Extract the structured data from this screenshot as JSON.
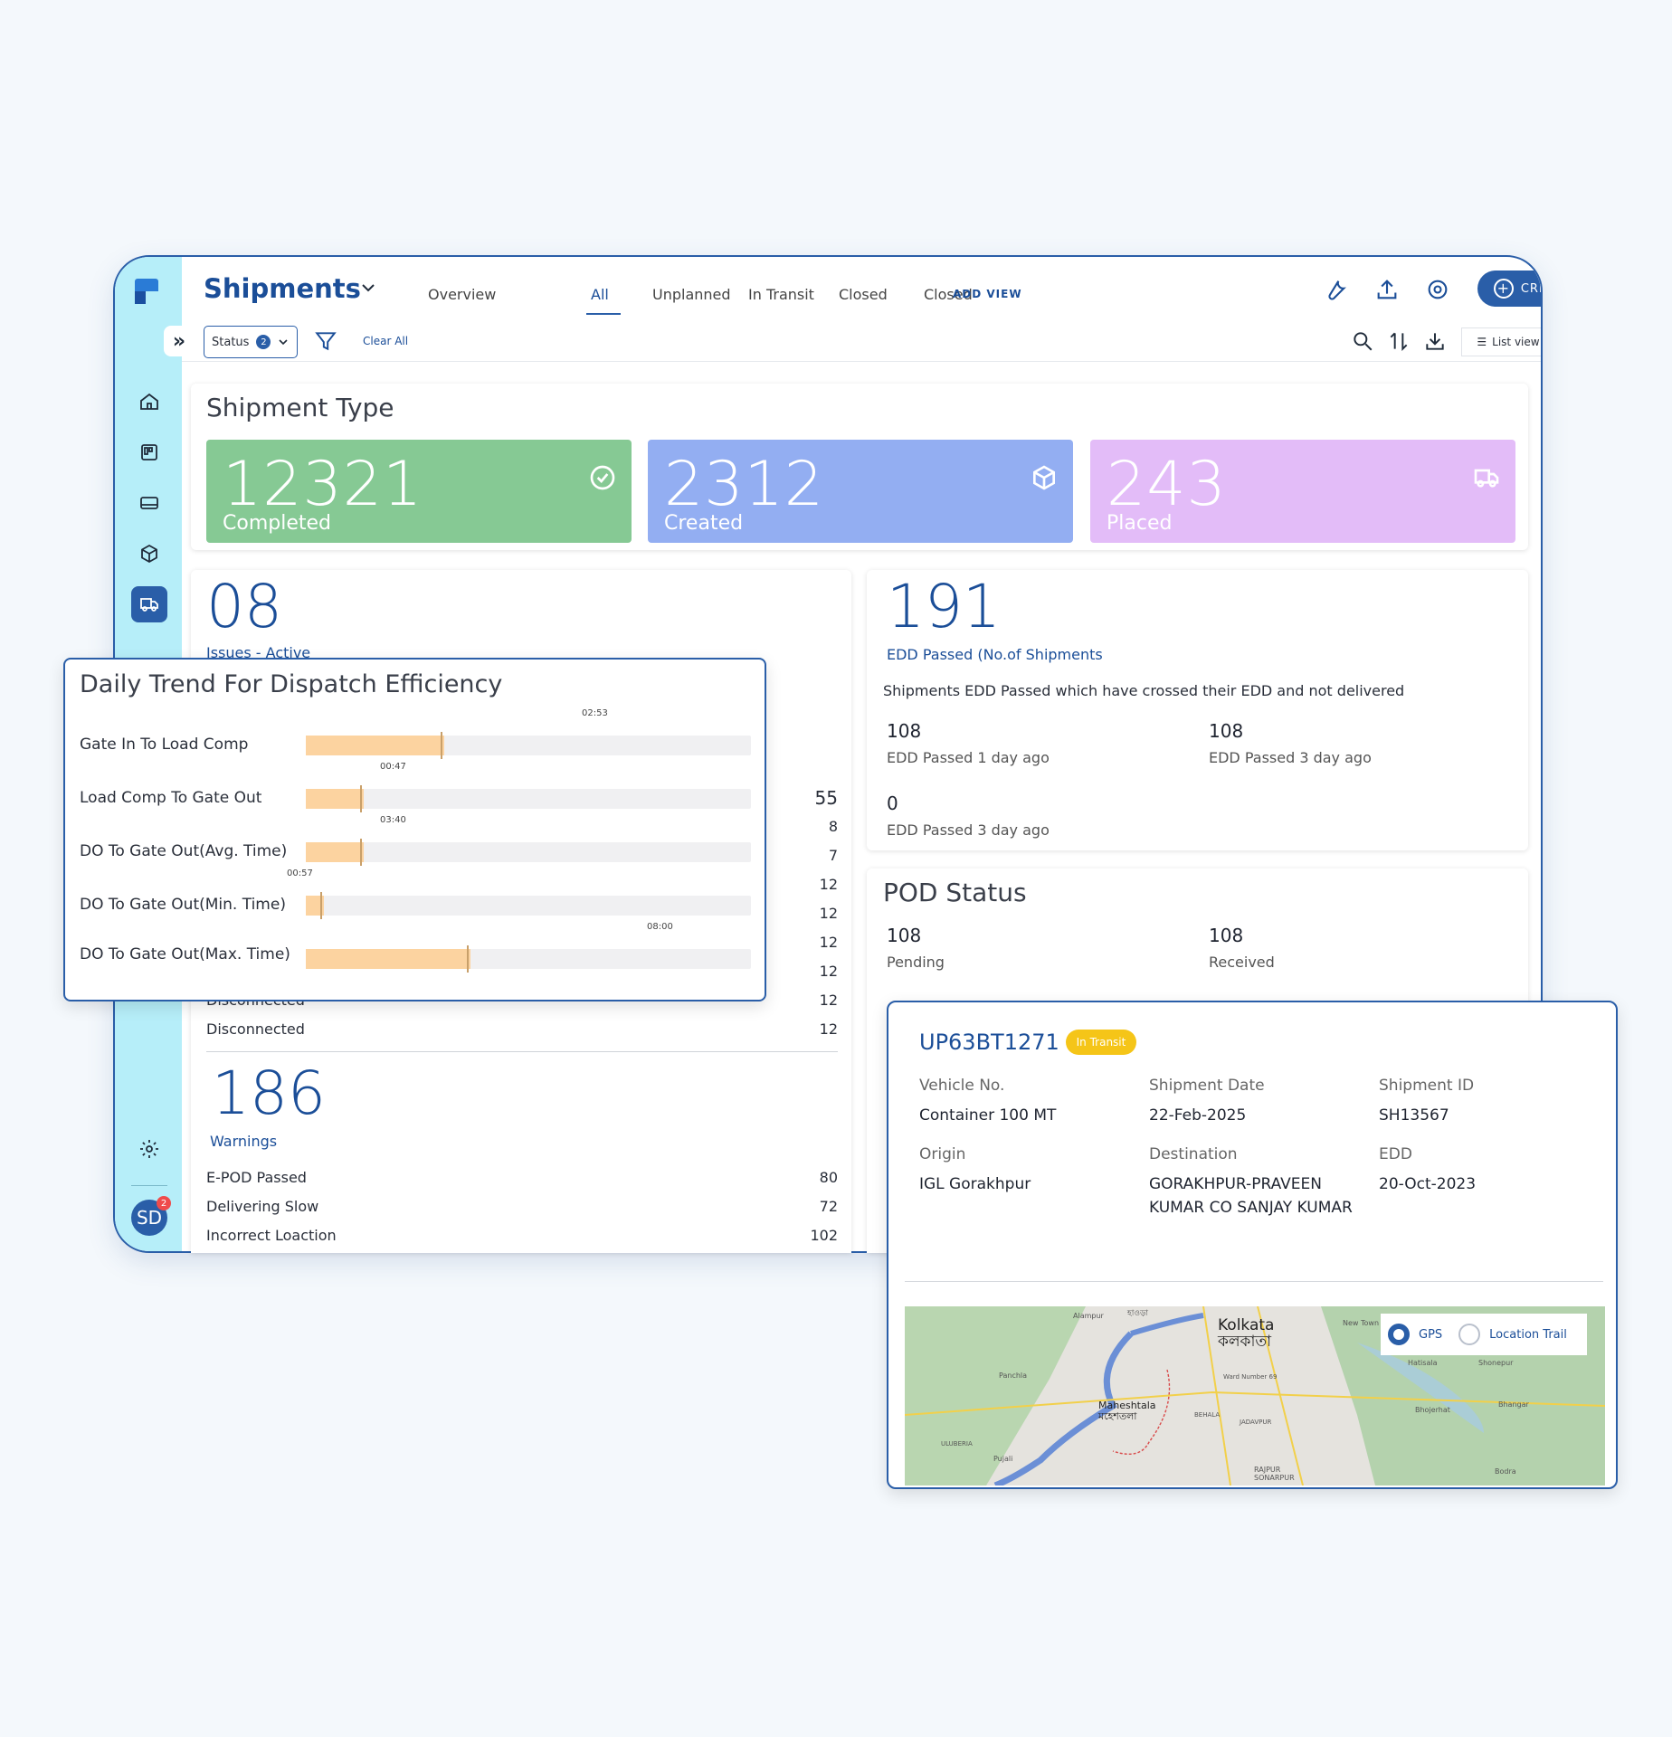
{
  "header": {
    "title": "Shipments",
    "tabs": [
      "Overview",
      "All",
      "Unplanned",
      "In Transit",
      "Closed",
      "Closed"
    ],
    "active_tab": "All",
    "add_view": "ADD VIEW",
    "create_label": "CREATE"
  },
  "filters": {
    "status_label": "Status",
    "status_count": "2",
    "clear_all": "Clear All",
    "view_label": "List view"
  },
  "shipment_type": {
    "title": "Shipment Type",
    "tiles": [
      {
        "value": "12321",
        "label": "Completed",
        "color": "#86c994",
        "icon": "check-circle-icon"
      },
      {
        "value": "2312",
        "label": "Created",
        "color": "#93aef2",
        "icon": "box-icon"
      },
      {
        "value": "243",
        "label": "Placed",
        "color": "#e3bcf8",
        "icon": "truck-icon"
      }
    ]
  },
  "issues": {
    "value": "08",
    "label": "Issues - Active",
    "right_values": [
      "55",
      "8",
      "7",
      "12",
      "12",
      "12",
      "12"
    ],
    "rows": [
      {
        "label": "Disconnected",
        "value": "12"
      },
      {
        "label": "Disconnected",
        "value": "12"
      }
    ]
  },
  "warnings": {
    "value": "186",
    "label": "Warnings",
    "rows": [
      {
        "label": "E-POD Passed",
        "value": "80"
      },
      {
        "label": "Delivering Slow",
        "value": "72"
      },
      {
        "label": "Incorrect Loaction",
        "value": "102"
      }
    ]
  },
  "edd": {
    "value": "191",
    "label": "EDD Passed (No.of Shipments",
    "description": "Shipments EDD Passed which have crossed their EDD and not delivered",
    "items": [
      {
        "value": "108",
        "label": "EDD Passed 1 day ago"
      },
      {
        "value": "108",
        "label": "EDD Passed 3 day ago"
      },
      {
        "value": "0",
        "label": "EDD Passed 3 day ago"
      }
    ]
  },
  "pod": {
    "title": "POD Status",
    "items": [
      {
        "value": "108",
        "label": "Pending"
      },
      {
        "value": "108",
        "label": "Received"
      }
    ]
  },
  "trend": {
    "title": "Daily Trend For Dispatch Efficiency",
    "rows": [
      {
        "label": "Gate In To Load Comp",
        "time": "02:53",
        "fraction": 0.31
      },
      {
        "label": "Load Comp To Gate Out",
        "time": "00:47",
        "fraction": 0.13
      },
      {
        "label": "DO To Gate Out(Avg. Time)",
        "time": "03:40",
        "fraction": 0.13
      },
      {
        "label": "DO To Gate Out(Min. Time)",
        "time": "00:57",
        "fraction": 0.04
      },
      {
        "label": "DO To Gate Out(Max. Time)",
        "time": "08:00",
        "fraction": 0.37
      }
    ]
  },
  "vehicle": {
    "number": "UP63BT1271",
    "status": "In Transit",
    "status_color": "#f5c518",
    "fields": [
      {
        "label": "Vehicle No.",
        "value": "Container 100 MT"
      },
      {
        "label": "Shipment Date",
        "value": "22-Feb-2025"
      },
      {
        "label": "Shipment ID",
        "value": "SH13567"
      },
      {
        "label": "Origin",
        "value": "IGL Gorakhpur"
      },
      {
        "label": "Destination",
        "value": "GORAKHPUR-PRAVEEN KUMAR CO SANJAY KUMAR"
      },
      {
        "label": "EDD",
        "value": "20-Oct-2023"
      }
    ],
    "map": {
      "legend_gps": "GPS",
      "legend_trail": "Location Trail",
      "places": [
        "Kolkata",
        "কলকাতা",
        "Maheshtala",
        "মহেশতলা",
        "Alampur",
        "Panchla",
        "New Town",
        "Hatisala",
        "Shonepur",
        "Bhangar",
        "Bhojerhat",
        "BEHALA",
        "JADAVPUR",
        "ULUBERIA",
        "Pujali",
        "RAJPUR SONARPUR",
        "Bodra",
        "Ward Number 69",
        "হাওড়া"
      ]
    }
  }
}
